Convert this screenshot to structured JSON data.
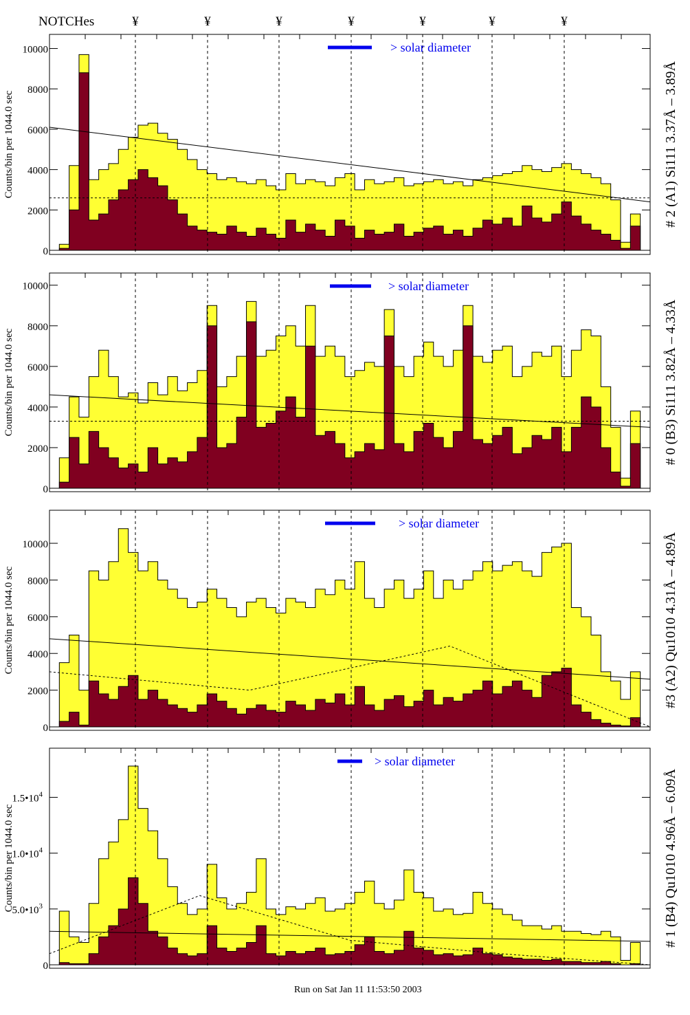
{
  "header": {
    "notches_label": "NOTCHes",
    "notch_symbol": "¥"
  },
  "footer": {
    "run_text": "Run on Sat Jan 11 11:53:50 2003"
  },
  "colors": {
    "total": "#ffff33",
    "subset": "#800020",
    "legend": "#0000ee"
  },
  "chart_data": [
    {
      "type": "bar",
      "title": "# 2 (A1) Si111  3.37Å – 3.89Å",
      "ylabel": "Counts/bin per   1044.0 sec",
      "legend": "> solar diameter",
      "ylim": [
        0,
        10700
      ],
      "yticks": [
        {
          "v": 0,
          "label": "0"
        },
        {
          "v": 2000,
          "label": "2000"
        },
        {
          "v": 4000,
          "label": "4000"
        },
        {
          "v": 6000,
          "label": "6000"
        },
        {
          "v": 8000,
          "label": "8000"
        },
        {
          "v": 10000,
          "label": "10000"
        }
      ],
      "total": [
        0,
        300,
        4200,
        9700,
        3500,
        4000,
        4300,
        5000,
        5600,
        6200,
        6300,
        5800,
        5500,
        5000,
        4500,
        4000,
        3800,
        3500,
        3600,
        3400,
        3300,
        3500,
        3200,
        3000,
        3800,
        3300,
        3500,
        3400,
        3200,
        3600,
        3800,
        3000,
        3500,
        3300,
        3400,
        3600,
        3200,
        3300,
        3400,
        3500,
        3300,
        3400,
        3200,
        3500,
        3600,
        3700,
        3800,
        3900,
        4200,
        4000,
        3900,
        4100,
        4300,
        4000,
        3800,
        3600,
        3300,
        2500,
        400,
        1800,
        0
      ],
      "subset": [
        0,
        100,
        2000,
        8800,
        1500,
        1800,
        2500,
        3000,
        3500,
        4000,
        3600,
        3200,
        2500,
        1800,
        1200,
        1000,
        900,
        800,
        1200,
        900,
        700,
        1100,
        800,
        600,
        1500,
        900,
        1300,
        1000,
        700,
        1500,
        1200,
        600,
        1000,
        800,
        900,
        1300,
        700,
        900,
        1100,
        1200,
        800,
        1000,
        700,
        1100,
        1500,
        1300,
        1600,
        1200,
        2200,
        1600,
        1400,
        1800,
        2400,
        1700,
        1300,
        1000,
        800,
        500,
        100,
        1200,
        0
      ],
      "fit_solid": [
        6100,
        2400
      ],
      "fit_dashed": [
        2600,
        2600
      ]
    },
    {
      "type": "bar",
      "title": "# 0 (B3) Si111  3.82Å – 4.33Å",
      "ylabel": "Counts/bin per   1044.0 sec",
      "legend": "> solar diameter",
      "ylim": [
        0,
        10600
      ],
      "yticks": [
        {
          "v": 0,
          "label": "0"
        },
        {
          "v": 2000,
          "label": "2000"
        },
        {
          "v": 4000,
          "label": "4000"
        },
        {
          "v": 6000,
          "label": "6000"
        },
        {
          "v": 8000,
          "label": "8000"
        },
        {
          "v": 10000,
          "label": "10000"
        }
      ],
      "total": [
        0,
        1500,
        4500,
        3500,
        5500,
        6800,
        5500,
        4500,
        4700,
        4200,
        5200,
        4600,
        5500,
        4800,
        5200,
        5800,
        9000,
        5000,
        5500,
        6500,
        9200,
        6500,
        6800,
        7500,
        8000,
        7000,
        9000,
        6500,
        7000,
        6500,
        5500,
        5800,
        6200,
        6000,
        8800,
        6000,
        5500,
        6500,
        7200,
        6500,
        6000,
        6800,
        9000,
        6500,
        6200,
        6800,
        7000,
        5500,
        6000,
        6700,
        6500,
        7000,
        5500,
        6800,
        7800,
        7500,
        5000,
        3000,
        500,
        3800,
        0
      ],
      "subset": [
        0,
        300,
        2500,
        1200,
        2800,
        2000,
        1500,
        1000,
        1200,
        800,
        2000,
        1200,
        1500,
        1300,
        1800,
        2500,
        8000,
        2000,
        2200,
        3500,
        8200,
        3000,
        3200,
        3800,
        4500,
        3500,
        7000,
        2600,
        2800,
        2200,
        1500,
        1800,
        2200,
        1900,
        7500,
        2200,
        1800,
        2800,
        3200,
        2500,
        2000,
        2800,
        8000,
        2400,
        2200,
        2600,
        3000,
        1700,
        2000,
        2600,
        2400,
        3000,
        1800,
        3000,
        4500,
        4000,
        2000,
        800,
        100,
        2200,
        0
      ],
      "fit_solid": [
        4600,
        3000
      ],
      "fit_dashed": [
        3300,
        3300
      ]
    },
    {
      "type": "bar",
      "title": "#3 (A2) Qu1010  4.31Å – 4.89Å",
      "ylabel": "Counts/bin per   1044.0 sec",
      "legend": "> solar diameter",
      "ylim": [
        0,
        11800
      ],
      "yticks": [
        {
          "v": 0,
          "label": "0"
        },
        {
          "v": 2000,
          "label": "2000"
        },
        {
          "v": 4000,
          "label": "4000"
        },
        {
          "v": 6000,
          "label": "6000"
        },
        {
          "v": 8000,
          "label": "8000"
        },
        {
          "v": 10000,
          "label": "10000"
        }
      ],
      "total": [
        0,
        3500,
        5000,
        2000,
        8500,
        8000,
        9000,
        10800,
        9500,
        8500,
        9000,
        8000,
        7500,
        7000,
        6500,
        6800,
        7500,
        7000,
        6500,
        6000,
        6800,
        7000,
        6500,
        6200,
        7000,
        6800,
        6500,
        7500,
        7200,
        8000,
        7500,
        9000,
        7000,
        6500,
        7500,
        8000,
        7000,
        7500,
        8500,
        7000,
        8000,
        7500,
        8000,
        8500,
        9000,
        8500,
        8800,
        9000,
        8500,
        8200,
        9500,
        9800,
        10000,
        6500,
        6000,
        5000,
        3000,
        2500,
        1500,
        3000,
        0
      ],
      "subset": [
        0,
        300,
        800,
        100,
        2500,
        1800,
        1500,
        2200,
        2800,
        1500,
        2000,
        1500,
        1200,
        1000,
        800,
        1200,
        1800,
        1400,
        1000,
        700,
        1000,
        1200,
        900,
        800,
        1400,
        1200,
        900,
        1500,
        1300,
        1800,
        1200,
        2200,
        1200,
        900,
        1500,
        1700,
        1100,
        1400,
        2000,
        1200,
        1600,
        1400,
        1800,
        2000,
        2500,
        1800,
        2200,
        2500,
        2000,
        1600,
        2800,
        3000,
        3200,
        1200,
        800,
        400,
        200,
        100,
        50,
        500,
        0
      ],
      "fit_solid": [
        4800,
        2600
      ],
      "fit_dashed": [
        3000,
        2000,
        4400,
        0
      ]
    },
    {
      "type": "bar",
      "title": "# 1 (B4) Qu1010 4.96Å – 6.09Å",
      "ylabel": "Counts/bin per   1044.0 sec",
      "legend": "> solar diameter",
      "ylim": [
        0,
        19400
      ],
      "yticks": [
        {
          "v": 0,
          "label": "0"
        },
        {
          "v": 5000,
          "label": "5.0•10",
          "exp": "3"
        },
        {
          "v": 10000,
          "label": "1.0•10",
          "exp": "4"
        },
        {
          "v": 15000,
          "label": "1.5•10",
          "exp": "4"
        }
      ],
      "total": [
        0,
        4800,
        2500,
        2000,
        5500,
        9500,
        11000,
        13000,
        17800,
        14000,
        12000,
        9500,
        7000,
        5500,
        4500,
        5000,
        9000,
        6000,
        5000,
        5500,
        6500,
        9500,
        5000,
        4500,
        5200,
        5000,
        5500,
        6000,
        4800,
        5000,
        5500,
        6500,
        7500,
        5500,
        5000,
        5800,
        8500,
        6500,
        6000,
        4800,
        5000,
        4500,
        4600,
        6500,
        5500,
        5000,
        4500,
        4000,
        3500,
        3500,
        3200,
        3500,
        3000,
        3000,
        2800,
        2700,
        3000,
        2500,
        400,
        2000,
        0
      ],
      "subset": [
        0,
        200,
        100,
        100,
        1000,
        2500,
        3500,
        5000,
        7800,
        5500,
        3000,
        2500,
        1500,
        1000,
        800,
        1000,
        3500,
        1500,
        1200,
        1500,
        2000,
        3500,
        1000,
        800,
        1200,
        1000,
        1200,
        1500,
        900,
        1000,
        1200,
        1800,
        2500,
        1200,
        1000,
        1300,
        3000,
        1500,
        1300,
        900,
        1000,
        800,
        900,
        1500,
        1000,
        900,
        700,
        600,
        500,
        500,
        400,
        500,
        300,
        300,
        200,
        200,
        300,
        100,
        0,
        100,
        0
      ],
      "fit_solid": [
        3000,
        2100
      ],
      "fit_dashed": [
        1000,
        6200,
        2200,
        1000,
        0
      ]
    }
  ]
}
